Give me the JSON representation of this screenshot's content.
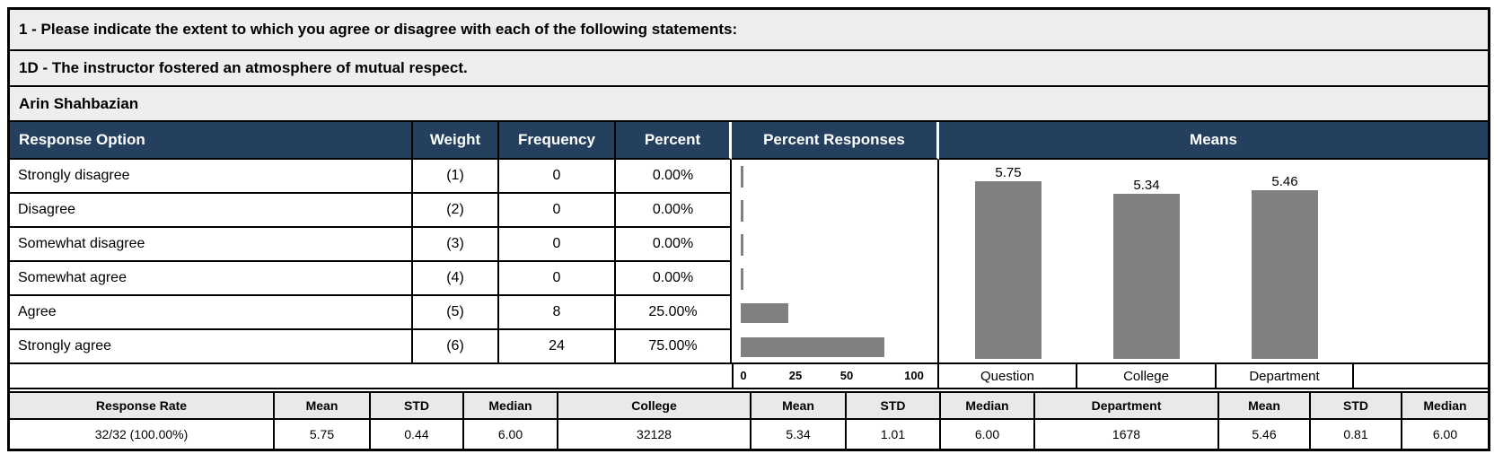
{
  "colors": {
    "header_bg": "#24405E",
    "header_text": "#FFFFFF",
    "title_bg": "#EEEEEE",
    "summary_header_bg": "#E9E9E9",
    "bar_gray": "#808080",
    "border": "#000000"
  },
  "titles": {
    "question_group": "1 - Please indicate the extent to which you agree or disagree with each of the following statements:",
    "question": "1D - The instructor fostered an atmosphere of mutual respect.",
    "instructor": "Arin Shahbazian"
  },
  "response_table": {
    "headers": {
      "option": "Response Option",
      "weight": "Weight",
      "frequency": "Frequency",
      "percent": "Percent",
      "percent_responses": "Percent Responses",
      "means": "Means"
    },
    "rows": [
      {
        "option": "Strongly disagree",
        "weight": "(1)",
        "frequency": "0",
        "percent": "0.00%"
      },
      {
        "option": "Disagree",
        "weight": "(2)",
        "frequency": "0",
        "percent": "0.00%"
      },
      {
        "option": "Somewhat disagree",
        "weight": "(3)",
        "frequency": "0",
        "percent": "0.00%"
      },
      {
        "option": "Somewhat agree",
        "weight": "(4)",
        "frequency": "0",
        "percent": "0.00%"
      },
      {
        "option": "Agree",
        "weight": "(5)",
        "frequency": "8",
        "percent": "25.00%"
      },
      {
        "option": "Strongly agree",
        "weight": "(6)",
        "frequency": "24",
        "percent": "75.00%"
      }
    ]
  },
  "chart_data": [
    {
      "type": "bar",
      "orientation": "horizontal",
      "title": "Percent Responses",
      "categories": [
        "Strongly disagree",
        "Disagree",
        "Somewhat disagree",
        "Somewhat agree",
        "Agree",
        "Strongly agree"
      ],
      "values": [
        0,
        0,
        0,
        0,
        25,
        75
      ],
      "xlim": [
        0,
        100
      ],
      "tick_labels": [
        "0",
        "25",
        "50",
        "100"
      ],
      "bar_color": "#808080",
      "grid": false
    },
    {
      "type": "bar",
      "orientation": "vertical",
      "title": "Means",
      "categories": [
        "Question",
        "College",
        "Department"
      ],
      "values": [
        5.75,
        5.34,
        5.46
      ],
      "data_labels": [
        "5.75",
        "5.34",
        "5.46"
      ],
      "ylim": [
        0,
        6
      ],
      "bar_color": "#808080",
      "grid": false
    }
  ],
  "summary_table": {
    "headers": [
      "Response Rate",
      "Mean",
      "STD",
      "Median",
      "College",
      "Mean",
      "STD",
      "Median",
      "Department",
      "Mean",
      "STD",
      "Median"
    ],
    "values": [
      "32/32 (100.00%)",
      "5.75",
      "0.44",
      "6.00",
      "32128",
      "5.34",
      "1.01",
      "6.00",
      "1678",
      "5.46",
      "0.81",
      "6.00"
    ]
  }
}
